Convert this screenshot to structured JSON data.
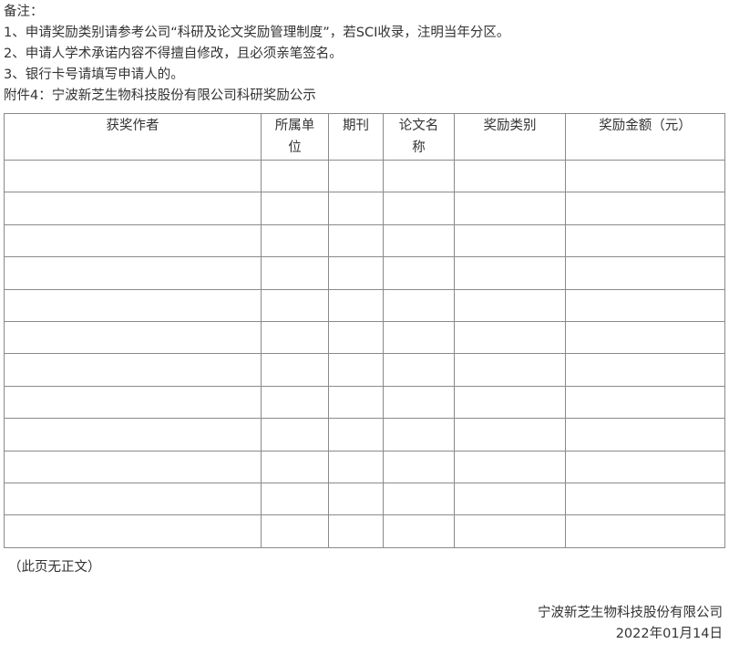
{
  "notes": {
    "heading": "备注：",
    "items": [
      "1、申请奖励类别请参考公司“科研及论文奖励管理制度”，若SCI收录，注明当年分区。",
      "2、申请人学术承诺内容不得擅自修改，且必须亲笔签名。",
      "3、银行卡号请填写申请人的。"
    ]
  },
  "attachment_title": "附件4：宁波新芝生物科技股份有限公司科研奖励公示",
  "table": {
    "headers": [
      "获奖作者",
      "所属单位",
      "期刊",
      "论文名称",
      "奖励类别",
      "奖励金额（元）"
    ],
    "rows": [
      [
        "",
        "",
        "",
        "",
        "",
        ""
      ],
      [
        "",
        "",
        "",
        "",
        "",
        ""
      ],
      [
        "",
        "",
        "",
        "",
        "",
        ""
      ],
      [
        "",
        "",
        "",
        "",
        "",
        ""
      ],
      [
        "",
        "",
        "",
        "",
        "",
        ""
      ],
      [
        "",
        "",
        "",
        "",
        "",
        ""
      ],
      [
        "",
        "",
        "",
        "",
        "",
        ""
      ],
      [
        "",
        "",
        "",
        "",
        "",
        ""
      ],
      [
        "",
        "",
        "",
        "",
        "",
        ""
      ],
      [
        "",
        "",
        "",
        "",
        "",
        ""
      ],
      [
        "",
        "",
        "",
        "",
        "",
        ""
      ],
      [
        "",
        "",
        "",
        "",
        "",
        ""
      ]
    ]
  },
  "no_body_note": "（此页无正文）",
  "signature": {
    "company": "宁波新芝生物科技股份有限公司",
    "date": "2022年01月14日"
  }
}
